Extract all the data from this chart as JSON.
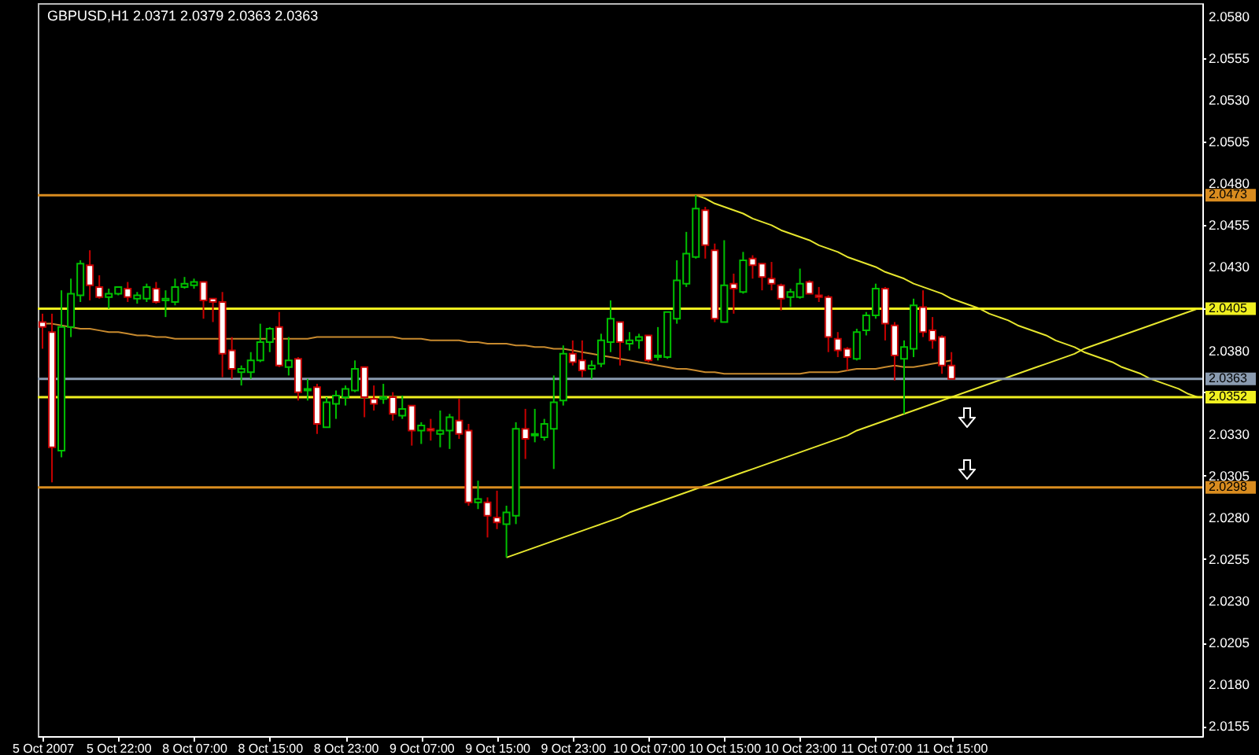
{
  "chart_data": {
    "type": "candlestick",
    "title": "GBPUSD,H1  2.0371 2.0379 2.0363 2.0363",
    "categories": [
      "5 Oct 2007",
      null,
      null,
      null,
      null,
      null,
      null,
      null,
      "5 Oct 22:00",
      null,
      null,
      null,
      null,
      null,
      null,
      null,
      "8 Oct 07:00",
      null,
      null,
      null,
      null,
      null,
      null,
      null,
      "8 Oct 15:00",
      null,
      null,
      null,
      null,
      null,
      null,
      null,
      "8 Oct 23:00",
      null,
      null,
      null,
      null,
      null,
      null,
      null,
      "9 Oct 07:00",
      null,
      null,
      null,
      null,
      null,
      null,
      null,
      "9 Oct 15:00",
      null,
      null,
      null,
      null,
      null,
      null,
      null,
      "9 Oct 23:00",
      null,
      null,
      null,
      null,
      null,
      null,
      null,
      "10 Oct 07:00",
      null,
      null,
      null,
      null,
      null,
      null,
      null,
      "10 Oct 15:00",
      null,
      null,
      null,
      null,
      null,
      null,
      null,
      "10 Oct 23:00",
      null,
      null,
      null,
      null,
      null,
      null,
      null,
      "11 Oct 07:00",
      null,
      null,
      null,
      null,
      null,
      null,
      null,
      "11 Oct 15:00",
      null,
      null,
      null,
      null,
      null,
      null,
      null,
      null,
      null,
      null,
      null,
      null,
      null,
      null,
      null,
      null,
      null,
      null,
      null,
      null,
      null,
      null,
      null,
      null,
      null,
      null
    ],
    "ohlc": [
      [
        2.0397,
        2.0402,
        2.0381,
        2.0394
      ],
      [
        2.0391,
        2.0402,
        2.0301,
        2.0322
      ],
      [
        2.032,
        2.0416,
        2.0316,
        2.0394
      ],
      [
        2.0394,
        2.0423,
        2.0388,
        2.0414
      ],
      [
        2.0413,
        2.0434,
        2.0409,
        2.0432
      ],
      [
        2.0431,
        2.044,
        2.041,
        2.0419
      ],
      [
        2.0418,
        2.0425,
        2.0411,
        2.0412
      ],
      [
        2.0412,
        2.0417,
        2.0405,
        2.0414
      ],
      [
        2.0414,
        2.0418,
        2.0413,
        2.0418
      ],
      [
        2.0417,
        2.0421,
        2.0409,
        2.0412
      ],
      [
        2.0411,
        2.0415,
        2.0408,
        2.0413
      ],
      [
        2.0411,
        2.042,
        2.0409,
        2.0418
      ],
      [
        2.0417,
        2.0421,
        2.0408,
        2.0409
      ],
      [
        2.041,
        2.0416,
        2.04,
        2.0411
      ],
      [
        2.0409,
        2.0423,
        2.0407,
        2.0418
      ],
      [
        2.0418,
        2.0424,
        2.0417,
        2.042
      ],
      [
        2.0419,
        2.0423,
        2.0417,
        2.0421
      ],
      [
        2.0421,
        2.0421,
        2.0399,
        2.041
      ],
      [
        2.0411,
        2.0411,
        2.0397,
        2.0409
      ],
      [
        2.0409,
        2.0415,
        2.0364,
        2.0378
      ],
      [
        2.038,
        2.0388,
        2.0363,
        2.0369
      ],
      [
        2.0367,
        2.0371,
        2.0359,
        2.0369
      ],
      [
        2.0367,
        2.0379,
        2.0363,
        2.0374
      ],
      [
        2.0374,
        2.0396,
        2.0373,
        2.0385
      ],
      [
        2.0385,
        2.0394,
        2.0379,
        2.0393
      ],
      [
        2.0394,
        2.0403,
        2.037,
        2.0371
      ],
      [
        2.037,
        2.0388,
        2.0365,
        2.0374
      ],
      [
        2.0375,
        2.0376,
        2.035,
        2.0355
      ],
      [
        2.0356,
        2.0363,
        2.035,
        2.0357
      ],
      [
        2.0358,
        2.036,
        2.033,
        2.0336
      ],
      [
        2.0334,
        2.0352,
        2.0334,
        2.0349
      ],
      [
        2.0348,
        2.0356,
        2.0339,
        2.0353
      ],
      [
        2.0352,
        2.0359,
        2.0347,
        2.0357
      ],
      [
        2.0356,
        2.0374,
        2.0355,
        2.0369
      ],
      [
        2.037,
        2.037,
        2.034,
        2.0352
      ],
      [
        2.0351,
        2.0359,
        2.0344,
        2.0348
      ],
      [
        2.0351,
        2.036,
        2.0348,
        2.0352
      ],
      [
        2.0352,
        2.0355,
        2.0338,
        2.0342
      ],
      [
        2.0341,
        2.0353,
        2.0339,
        2.0345
      ],
      [
        2.0347,
        2.0347,
        2.0323,
        2.0332
      ],
      [
        2.0332,
        2.0337,
        2.0324,
        2.0335
      ],
      [
        2.0333,
        2.0339,
        2.0326,
        2.0332
      ],
      [
        2.033,
        2.0344,
        2.0322,
        2.0332
      ],
      [
        2.0332,
        2.0342,
        2.0321,
        2.034
      ],
      [
        2.0338,
        2.0351,
        2.0327,
        2.033
      ],
      [
        2.0332,
        2.0336,
        2.0287,
        2.0289
      ],
      [
        2.0289,
        2.0302,
        2.0285,
        2.0291
      ],
      [
        2.0289,
        2.0292,
        2.0268,
        2.0281
      ],
      [
        2.028,
        2.0296,
        2.0273,
        2.0277
      ],
      [
        2.0276,
        2.0287,
        2.0256,
        2.0283
      ],
      [
        2.0281,
        2.0337,
        2.0276,
        2.0333
      ],
      [
        2.0333,
        2.0345,
        2.0315,
        2.0327
      ],
      [
        2.0329,
        2.0345,
        2.0325,
        2.033
      ],
      [
        2.0328,
        2.0339,
        2.0326,
        2.0336
      ],
      [
        2.0333,
        2.0365,
        2.0309,
        2.0349
      ],
      [
        2.035,
        2.0383,
        2.0347,
        2.0378
      ],
      [
        2.0378,
        2.0386,
        2.0371,
        2.0373
      ],
      [
        2.0374,
        2.0386,
        2.0364,
        2.0368
      ],
      [
        2.0369,
        2.0374,
        2.0363,
        2.0371
      ],
      [
        2.0372,
        2.039,
        2.037,
        2.0386
      ],
      [
        2.0385,
        2.041,
        2.0379,
        2.0399
      ],
      [
        2.0397,
        2.0397,
        2.0371,
        2.0385
      ],
      [
        2.0384,
        2.0391,
        2.038,
        2.0386
      ],
      [
        2.0386,
        2.039,
        2.0381,
        2.0388
      ],
      [
        2.0389,
        2.0389,
        2.0373,
        2.0374
      ],
      [
        2.0376,
        2.0394,
        2.0374,
        2.0377
      ],
      [
        2.0376,
        2.0403,
        2.0375,
        2.0403
      ],
      [
        2.0399,
        2.0434,
        2.0396,
        2.0422
      ],
      [
        2.042,
        2.0451,
        2.0418,
        2.0438
      ],
      [
        2.0436,
        2.0473,
        2.0435,
        2.0465
      ],
      [
        2.0464,
        2.0466,
        2.0435,
        2.0443
      ],
      [
        2.044,
        2.0444,
        2.0397,
        2.0399
      ],
      [
        2.0397,
        2.0446,
        2.0397,
        2.0419
      ],
      [
        2.042,
        2.0426,
        2.0402,
        2.0417
      ],
      [
        2.0415,
        2.0439,
        2.0414,
        2.0434
      ],
      [
        2.0435,
        2.0437,
        2.0423,
        2.0431
      ],
      [
        2.0432,
        2.0432,
        2.0416,
        2.0424
      ],
      [
        2.0423,
        2.0433,
        2.0416,
        2.042
      ],
      [
        2.0419,
        2.042,
        2.0404,
        2.0411
      ],
      [
        2.0412,
        2.0417,
        2.0406,
        2.0415
      ],
      [
        2.0412,
        2.0429,
        2.0411,
        2.042
      ],
      [
        2.0421,
        2.0422,
        2.0414,
        2.0414
      ],
      [
        2.0413,
        2.0418,
        2.0409,
        2.0412
      ],
      [
        2.0412,
        2.0413,
        2.0379,
        2.0388
      ],
      [
        2.0387,
        2.0391,
        2.0376,
        2.038
      ],
      [
        2.0381,
        2.0382,
        2.0368,
        2.0376
      ],
      [
        2.0375,
        2.0393,
        2.0374,
        2.0391
      ],
      [
        2.0392,
        2.0403,
        2.0389,
        2.0401
      ],
      [
        2.0401,
        2.042,
        2.0399,
        2.0417
      ],
      [
        2.0417,
        2.0418,
        2.0386,
        2.0396
      ],
      [
        2.0395,
        2.0397,
        2.0362,
        2.0377
      ],
      [
        2.0375,
        2.0386,
        2.0342,
        2.0382
      ],
      [
        2.0381,
        2.0411,
        2.0376,
        2.0407
      ],
      [
        2.0406,
        2.0416,
        2.0388,
        2.0391
      ],
      [
        2.0392,
        2.04,
        2.0381,
        2.0386
      ],
      [
        2.0388,
        2.0389,
        2.0366,
        2.0371
      ],
      [
        2.0371,
        2.0379,
        2.0363,
        2.0363
      ],
      null,
      null,
      null,
      null,
      null,
      null,
      null,
      null,
      null,
      null,
      null,
      null,
      null,
      null,
      null,
      null,
      null,
      null,
      null,
      null,
      null,
      null,
      null,
      null,
      null,
      null
    ],
    "series": [
      {
        "type": "line",
        "color": "#c88a2e",
        "values": [
          2.0396,
          2.0396,
          2.0395,
          2.0394,
          2.0393,
          2.0393,
          2.0392,
          2.0391,
          2.0391,
          2.039,
          2.0389,
          2.0389,
          2.0388,
          2.0388,
          2.0387,
          2.0387,
          2.0387,
          2.0387,
          2.0387,
          2.0387,
          2.0387,
          2.0387,
          2.0387,
          2.0387,
          2.0387,
          2.0387,
          2.0387,
          2.0387,
          2.0387,
          2.0388,
          2.0388,
          2.0388,
          2.0388,
          2.0388,
          2.0388,
          2.0388,
          2.0388,
          2.0388,
          2.0387,
          2.0387,
          2.0387,
          2.0386,
          2.0386,
          2.0386,
          2.0386,
          2.0385,
          2.0385,
          2.0384,
          2.0384,
          2.0384,
          2.0383,
          2.0383,
          2.0382,
          2.0382,
          2.0381,
          2.0381,
          2.038,
          2.0379,
          2.0378,
          2.0377,
          2.0376,
          2.0375,
          2.0374,
          2.0373,
          2.0372,
          2.0371,
          2.037,
          2.0369,
          2.0369,
          2.0368,
          2.0367,
          2.0367,
          2.0366,
          2.0366,
          2.0366,
          2.0366,
          2.0366,
          2.0366,
          2.0366,
          2.0366,
          2.0366,
          2.0367,
          2.0367,
          2.0367,
          2.0367,
          2.0368,
          2.0369,
          2.0369,
          2.0369,
          2.037,
          2.0371,
          2.037,
          2.037,
          2.0371,
          2.0372,
          2.0373,
          2.0374,
          null,
          null,
          null,
          null,
          null,
          null,
          null,
          null,
          null,
          null,
          null,
          null,
          null,
          null,
          null,
          null,
          null,
          null,
          null,
          null,
          null,
          null,
          null,
          null,
          null,
          null
        ]
      },
      {
        "type": "line",
        "color": "#e6e62e",
        "values": [
          null,
          null,
          null,
          null,
          null,
          null,
          null,
          null,
          null,
          null,
          null,
          null,
          null,
          null,
          null,
          null,
          null,
          null,
          null,
          null,
          null,
          null,
          null,
          null,
          null,
          null,
          null,
          null,
          null,
          null,
          null,
          null,
          null,
          null,
          null,
          null,
          null,
          null,
          null,
          null,
          null,
          null,
          null,
          null,
          null,
          null,
          null,
          null,
          null,
          2.0256,
          2.0258,
          2.026,
          2.0262,
          2.0264,
          2.0266,
          2.0268,
          2.027,
          2.0272,
          2.0274,
          2.0276,
          2.0278,
          2.028,
          2.0283,
          2.0285,
          2.0287,
          2.0289,
          2.0291,
          2.0293,
          2.0295,
          2.0297,
          2.0299,
          2.0301,
          2.0303,
          2.0305,
          2.0307,
          2.0309,
          2.0311,
          2.0313,
          2.0315,
          2.0317,
          2.0319,
          2.0321,
          2.0323,
          2.0325,
          2.0327,
          2.0329,
          2.0332,
          2.0334,
          2.0336,
          2.0338,
          2.034,
          2.0342,
          2.0344,
          2.0346,
          2.0348,
          2.035,
          2.0352,
          2.0354,
          2.0356,
          2.0358,
          2.036,
          2.0362,
          2.0364,
          2.0366,
          2.0368,
          2.037,
          2.0372,
          2.0374,
          2.0376,
          2.0378,
          2.0381,
          2.0383,
          2.0385,
          2.0387,
          2.0389,
          2.0391,
          2.0393,
          2.0395,
          2.0397,
          2.0399,
          2.0401,
          2.0403,
          2.0405
        ]
      },
      {
        "type": "line",
        "color": "#e6e62e",
        "values": [
          null,
          null,
          null,
          null,
          null,
          null,
          null,
          null,
          null,
          null,
          null,
          null,
          null,
          null,
          null,
          null,
          null,
          null,
          null,
          null,
          null,
          null,
          null,
          null,
          null,
          null,
          null,
          null,
          null,
          null,
          null,
          null,
          null,
          null,
          null,
          null,
          null,
          null,
          null,
          null,
          null,
          null,
          null,
          null,
          null,
          null,
          null,
          null,
          null,
          null,
          null,
          null,
          null,
          null,
          null,
          null,
          null,
          null,
          null,
          null,
          null,
          null,
          null,
          null,
          null,
          null,
          null,
          null,
          null,
          2.0473,
          2.0471,
          2.0468,
          2.0466,
          2.0464,
          2.0462,
          2.0459,
          2.0457,
          2.0455,
          2.0452,
          2.045,
          2.0448,
          2.0446,
          2.0443,
          2.0441,
          2.0439,
          2.0436,
          2.0434,
          2.0432,
          2.043,
          2.0427,
          2.0425,
          2.0423,
          2.042,
          2.0418,
          2.0416,
          2.0414,
          2.0411,
          2.0409,
          2.0407,
          2.0405,
          2.0402,
          2.04,
          2.0398,
          2.0395,
          2.0393,
          2.0391,
          2.0389,
          2.0386,
          2.0384,
          2.0382,
          2.0379,
          2.0377,
          2.0375,
          2.0373,
          2.037,
          2.0368,
          2.0366,
          2.0363,
          2.0361,
          2.0359,
          2.0357,
          2.0354,
          2.0352
        ]
      }
    ],
    "ref_lines": [
      {
        "axis": "y",
        "value": 2.0473,
        "label": "2.0473",
        "color": "#d98c1f"
      },
      {
        "axis": "y",
        "value": 2.0405,
        "label": "2.0405",
        "color": "#f0f020"
      },
      {
        "axis": "y",
        "value": 2.0363,
        "label": "2.0363",
        "color": "#8a9bb0"
      },
      {
        "axis": "y",
        "value": 2.0352,
        "label": "2.0352",
        "color": "#f0f020"
      },
      {
        "axis": "y",
        "value": 2.0298,
        "label": "2.0298",
        "color": "#d98c1f"
      }
    ],
    "ylim": [
      2.0149,
      2.0588
    ],
    "yticks": [
      2.0155,
      {
        "value": 2.018,
        "label": "2.0180"
      },
      2.0205,
      {
        "value": 2.023,
        "label": "2.0230"
      },
      2.0255,
      {
        "value": 2.028,
        "label": "2.0280"
      },
      2.0305,
      {
        "value": 2.033,
        "label": "2.0330"
      },
      {
        "value": 2.0355,
        "label": null
      },
      {
        "value": 2.038,
        "label": "2.0380"
      },
      {
        "value": 2.0405,
        "label": null
      },
      {
        "value": 2.043,
        "label": "2.0430"
      },
      2.0455,
      {
        "value": 2.048,
        "label": "2.0480"
      },
      2.0505,
      {
        "value": 2.053,
        "label": "2.0530"
      },
      2.0555,
      {
        "value": 2.058,
        "label": "2.0580"
      }
    ]
  }
}
